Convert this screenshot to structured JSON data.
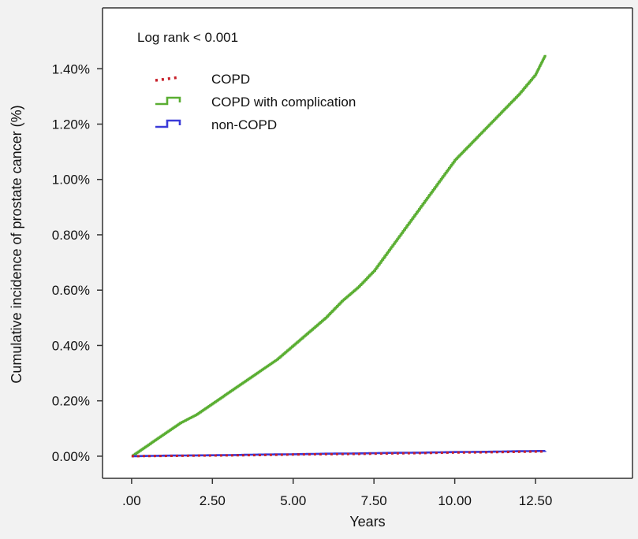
{
  "chart_data": {
    "type": "line",
    "annotation": "Log rank < 0.001",
    "xlabel": "Years",
    "ylabel": "Cumulative incidence of prostate cancer (%)",
    "xlim": [
      -0.9,
      15.5
    ],
    "ylim": [
      -0.0008,
      0.0162
    ],
    "x_ticks": [
      0,
      2.5,
      5,
      7.5,
      10,
      12.5
    ],
    "x_tick_labels": [
      ".00",
      "2.50",
      "5.00",
      "7.50",
      "10.00",
      "12.50"
    ],
    "y_ticks": [
      0,
      0.002,
      0.004,
      0.006,
      0.008,
      0.01,
      0.012,
      0.014
    ],
    "y_tick_labels": [
      "0.00%",
      "0.20%",
      "0.40%",
      "0.60%",
      "0.80%",
      "1.00%",
      "1.20%",
      "1.40%"
    ],
    "grid": false,
    "legend_position": "top-left",
    "series": [
      {
        "name": "COPD",
        "color": "#c8202a",
        "style": "dotted",
        "x": [
          0,
          1,
          2,
          3,
          4,
          5,
          6,
          7,
          8,
          9,
          10,
          11,
          12,
          12.8
        ],
        "y": [
          0,
          1e-05,
          2e-05,
          3e-05,
          4e-05,
          6e-05,
          7e-05,
          8e-05,
          0.0001,
          0.00011,
          0.00013,
          0.00014,
          0.00016,
          0.00017
        ]
      },
      {
        "name": "COPD with complication",
        "color": "#5aae32",
        "style": "step",
        "x": [
          0,
          0.5,
          1,
          1.5,
          2,
          2.5,
          3,
          3.5,
          4,
          4.5,
          5,
          5.5,
          6,
          6.5,
          7,
          7.5,
          8,
          8.5,
          9,
          9.5,
          10,
          10.5,
          11,
          11.5,
          12,
          12.5,
          12.8
        ],
        "y": [
          0,
          0.0004,
          0.0008,
          0.0012,
          0.0015,
          0.0019,
          0.0023,
          0.0027,
          0.0031,
          0.0035,
          0.004,
          0.0045,
          0.005,
          0.0056,
          0.0061,
          0.0067,
          0.0075,
          0.0083,
          0.0091,
          0.0099,
          0.0107,
          0.0113,
          0.0119,
          0.0125,
          0.0131,
          0.0138,
          0.0145
        ]
      },
      {
        "name": "non-COPD",
        "color": "#3a3ad8",
        "style": "step",
        "x": [
          0,
          1,
          2,
          3,
          4,
          5,
          6,
          7,
          8,
          9,
          10,
          11,
          12,
          12.8
        ],
        "y": [
          0,
          2e-05,
          3e-05,
          4e-05,
          6e-05,
          7e-05,
          9e-05,
          0.0001,
          0.00012,
          0.00013,
          0.00015,
          0.00016,
          0.00018,
          0.00019
        ]
      }
    ]
  }
}
